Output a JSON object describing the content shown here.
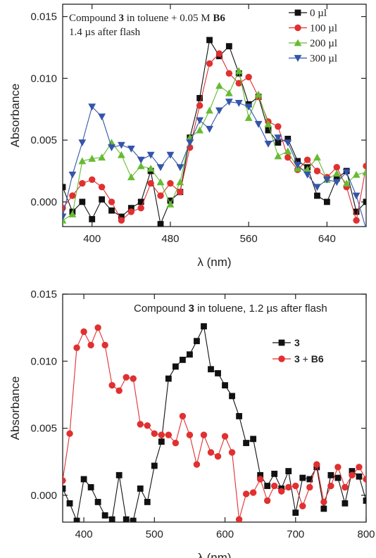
{
  "chart_data": [
    {
      "type": "line",
      "title": "Compound 3 in toluene + 0.05 M B6",
      "title_parts": [
        "Compound ",
        "3",
        " in toluene + 0.05 M ",
        "B6"
      ],
      "subtitle": "1.4 µs after flash",
      "xlabel": "λ (nm)",
      "ylabel": "Absorbance",
      "xlim": [
        370,
        680
      ],
      "ylim": [
        -0.002,
        0.016
      ],
      "xticks": [
        400,
        480,
        560,
        640
      ],
      "yticks": [
        0.0,
        0.005,
        0.01,
        0.015
      ],
      "ytick_labels": [
        "0.000",
        "0.005",
        "0.010",
        "0.015"
      ],
      "legend_position": "top-right",
      "x": [
        370,
        380,
        390,
        400,
        410,
        420,
        430,
        440,
        450,
        460,
        470,
        480,
        490,
        500,
        510,
        520,
        530,
        540,
        550,
        560,
        570,
        580,
        590,
        600,
        610,
        620,
        630,
        640,
        650,
        660,
        670,
        680
      ],
      "series": [
        {
          "name": "0 µl",
          "color": "#111111",
          "marker": "square",
          "values": [
            0.0012,
            -0.0008,
            0.0,
            -0.0014,
            0.0002,
            -0.0007,
            -0.0012,
            -0.0005,
            0.0,
            0.0025,
            -0.0018,
            0.0001,
            0.0008,
            0.0052,
            0.0084,
            0.0131,
            0.0118,
            0.0126,
            0.0104,
            0.0079,
            0.0085,
            0.0058,
            0.0048,
            0.0051,
            0.0033,
            0.0028,
            0.0005,
            0.0,
            0.0019,
            0.0025,
            -0.0008,
            0.0
          ]
        },
        {
          "name": "100 µl",
          "color": "#e03030",
          "marker": "circle",
          "values": [
            -0.0005,
            0.0005,
            0.0015,
            0.0018,
            0.0012,
            0.0,
            -0.0015,
            -0.0008,
            -0.0005,
            0.0015,
            0.0005,
            0.0015,
            0.0008,
            0.0044,
            0.0078,
            0.0112,
            0.012,
            0.0104,
            0.0096,
            0.0101,
            0.0085,
            0.0065,
            0.0061,
            0.0036,
            0.0026,
            0.0034,
            0.0025,
            0.002,
            0.0028,
            0.0012,
            -0.0015,
            0.0029
          ]
        },
        {
          "name": "200 µl",
          "color": "#66bb33",
          "marker": "triangle-up",
          "values": [
            -0.0015,
            -0.001,
            0.0033,
            0.0035,
            0.0036,
            0.0048,
            0.0038,
            0.002,
            0.0029,
            0.0027,
            0.0016,
            -0.0002,
            0.0016,
            0.0052,
            0.0058,
            0.0074,
            0.0094,
            0.0088,
            0.0106,
            0.0068,
            0.0087,
            0.0063,
            0.0037,
            0.0041,
            0.0027,
            0.0026,
            0.0036,
            0.0018,
            0.0023,
            0.0015,
            0.0022,
            0.0024
          ]
        },
        {
          "name": "300 µl",
          "color": "#3355aa",
          "marker": "triangle-down",
          "values": [
            -0.0012,
            0.0022,
            0.0048,
            0.0077,
            0.0069,
            0.0044,
            0.0046,
            0.0043,
            0.0034,
            0.0038,
            0.0028,
            0.0038,
            0.0028,
            0.0048,
            0.0066,
            0.0059,
            0.0074,
            0.0081,
            0.008,
            0.0077,
            0.0063,
            0.0047,
            0.0052,
            0.0048,
            0.003,
            0.0022,
            0.0012,
            0.0018,
            0.0016,
            0.0024,
            0.0005,
            -0.0022
          ]
        }
      ]
    },
    {
      "type": "line",
      "title": "Compound 3 in toluene, 1.2 µs after flash",
      "title_parts": [
        "Compound ",
        "3",
        " in toluene, 1.2 µs after flash"
      ],
      "xlabel": "λ (nm)",
      "ylabel": "Absorbance",
      "xlim": [
        370,
        800
      ],
      "ylim": [
        -0.002,
        0.015
      ],
      "xticks": [
        400,
        500,
        600,
        700,
        800
      ],
      "yticks": [
        0.0,
        0.005,
        0.01,
        0.015
      ],
      "ytick_labels": [
        "0.000",
        "0.005",
        "0.010",
        "0.015"
      ],
      "legend_position": "right",
      "x": [
        370,
        380,
        390,
        400,
        410,
        420,
        430,
        440,
        450,
        460,
        470,
        480,
        490,
        500,
        510,
        520,
        530,
        540,
        550,
        560,
        570,
        580,
        590,
        600,
        610,
        620,
        630,
        640,
        650,
        660,
        670,
        680,
        690,
        700,
        710,
        720,
        730,
        740,
        750,
        760,
        770,
        780,
        790,
        800
      ],
      "series": [
        {
          "name": "3",
          "legend_parts": [
            "3",
            ""
          ],
          "color": "#111111",
          "marker": "square",
          "values": [
            0.0005,
            -0.0006,
            -0.0019,
            0.0012,
            0.0006,
            -0.0005,
            -0.0015,
            -0.0018,
            0.0015,
            -0.0018,
            -0.0019,
            0.0005,
            -0.0005,
            0.0022,
            0.004,
            0.0087,
            0.0096,
            0.0101,
            0.0105,
            0.0115,
            0.0126,
            0.0094,
            0.0091,
            0.0082,
            0.0074,
            0.0059,
            0.0039,
            0.0042,
            0.0015,
            0.0007,
            0.0016,
            0.0005,
            0.0018,
            -0.0013,
            0.0013,
            0.0012,
            0.0021,
            -0.001,
            0.0015,
            0.0013,
            -0.0006,
            0.0018,
            0.0014,
            -0.0004
          ]
        },
        {
          "name": "3 + B6",
          "legend_parts": [
            "3",
            " + ",
            "B6"
          ],
          "color": "#e03030",
          "marker": "circle",
          "values": [
            0.0011,
            0.0046,
            0.011,
            0.0122,
            0.0112,
            0.0125,
            0.0112,
            0.0082,
            0.0078,
            0.0088,
            0.0087,
            0.0053,
            0.0052,
            0.0046,
            0.0045,
            0.0045,
            0.0039,
            0.0059,
            0.0045,
            0.0023,
            0.0045,
            0.0032,
            0.0029,
            0.0044,
            0.0032,
            -0.0018,
            0.0001,
            0.0002,
            0.0012,
            -0.0004,
            0.0007,
            0.0003,
            0.0006,
            0.0007,
            -0.0008,
            0.0006,
            0.0023,
            -0.0005,
            0.0007,
            0.0021,
            0.0006,
            0.0015,
            0.0021,
            0.0012
          ]
        }
      ]
    }
  ]
}
